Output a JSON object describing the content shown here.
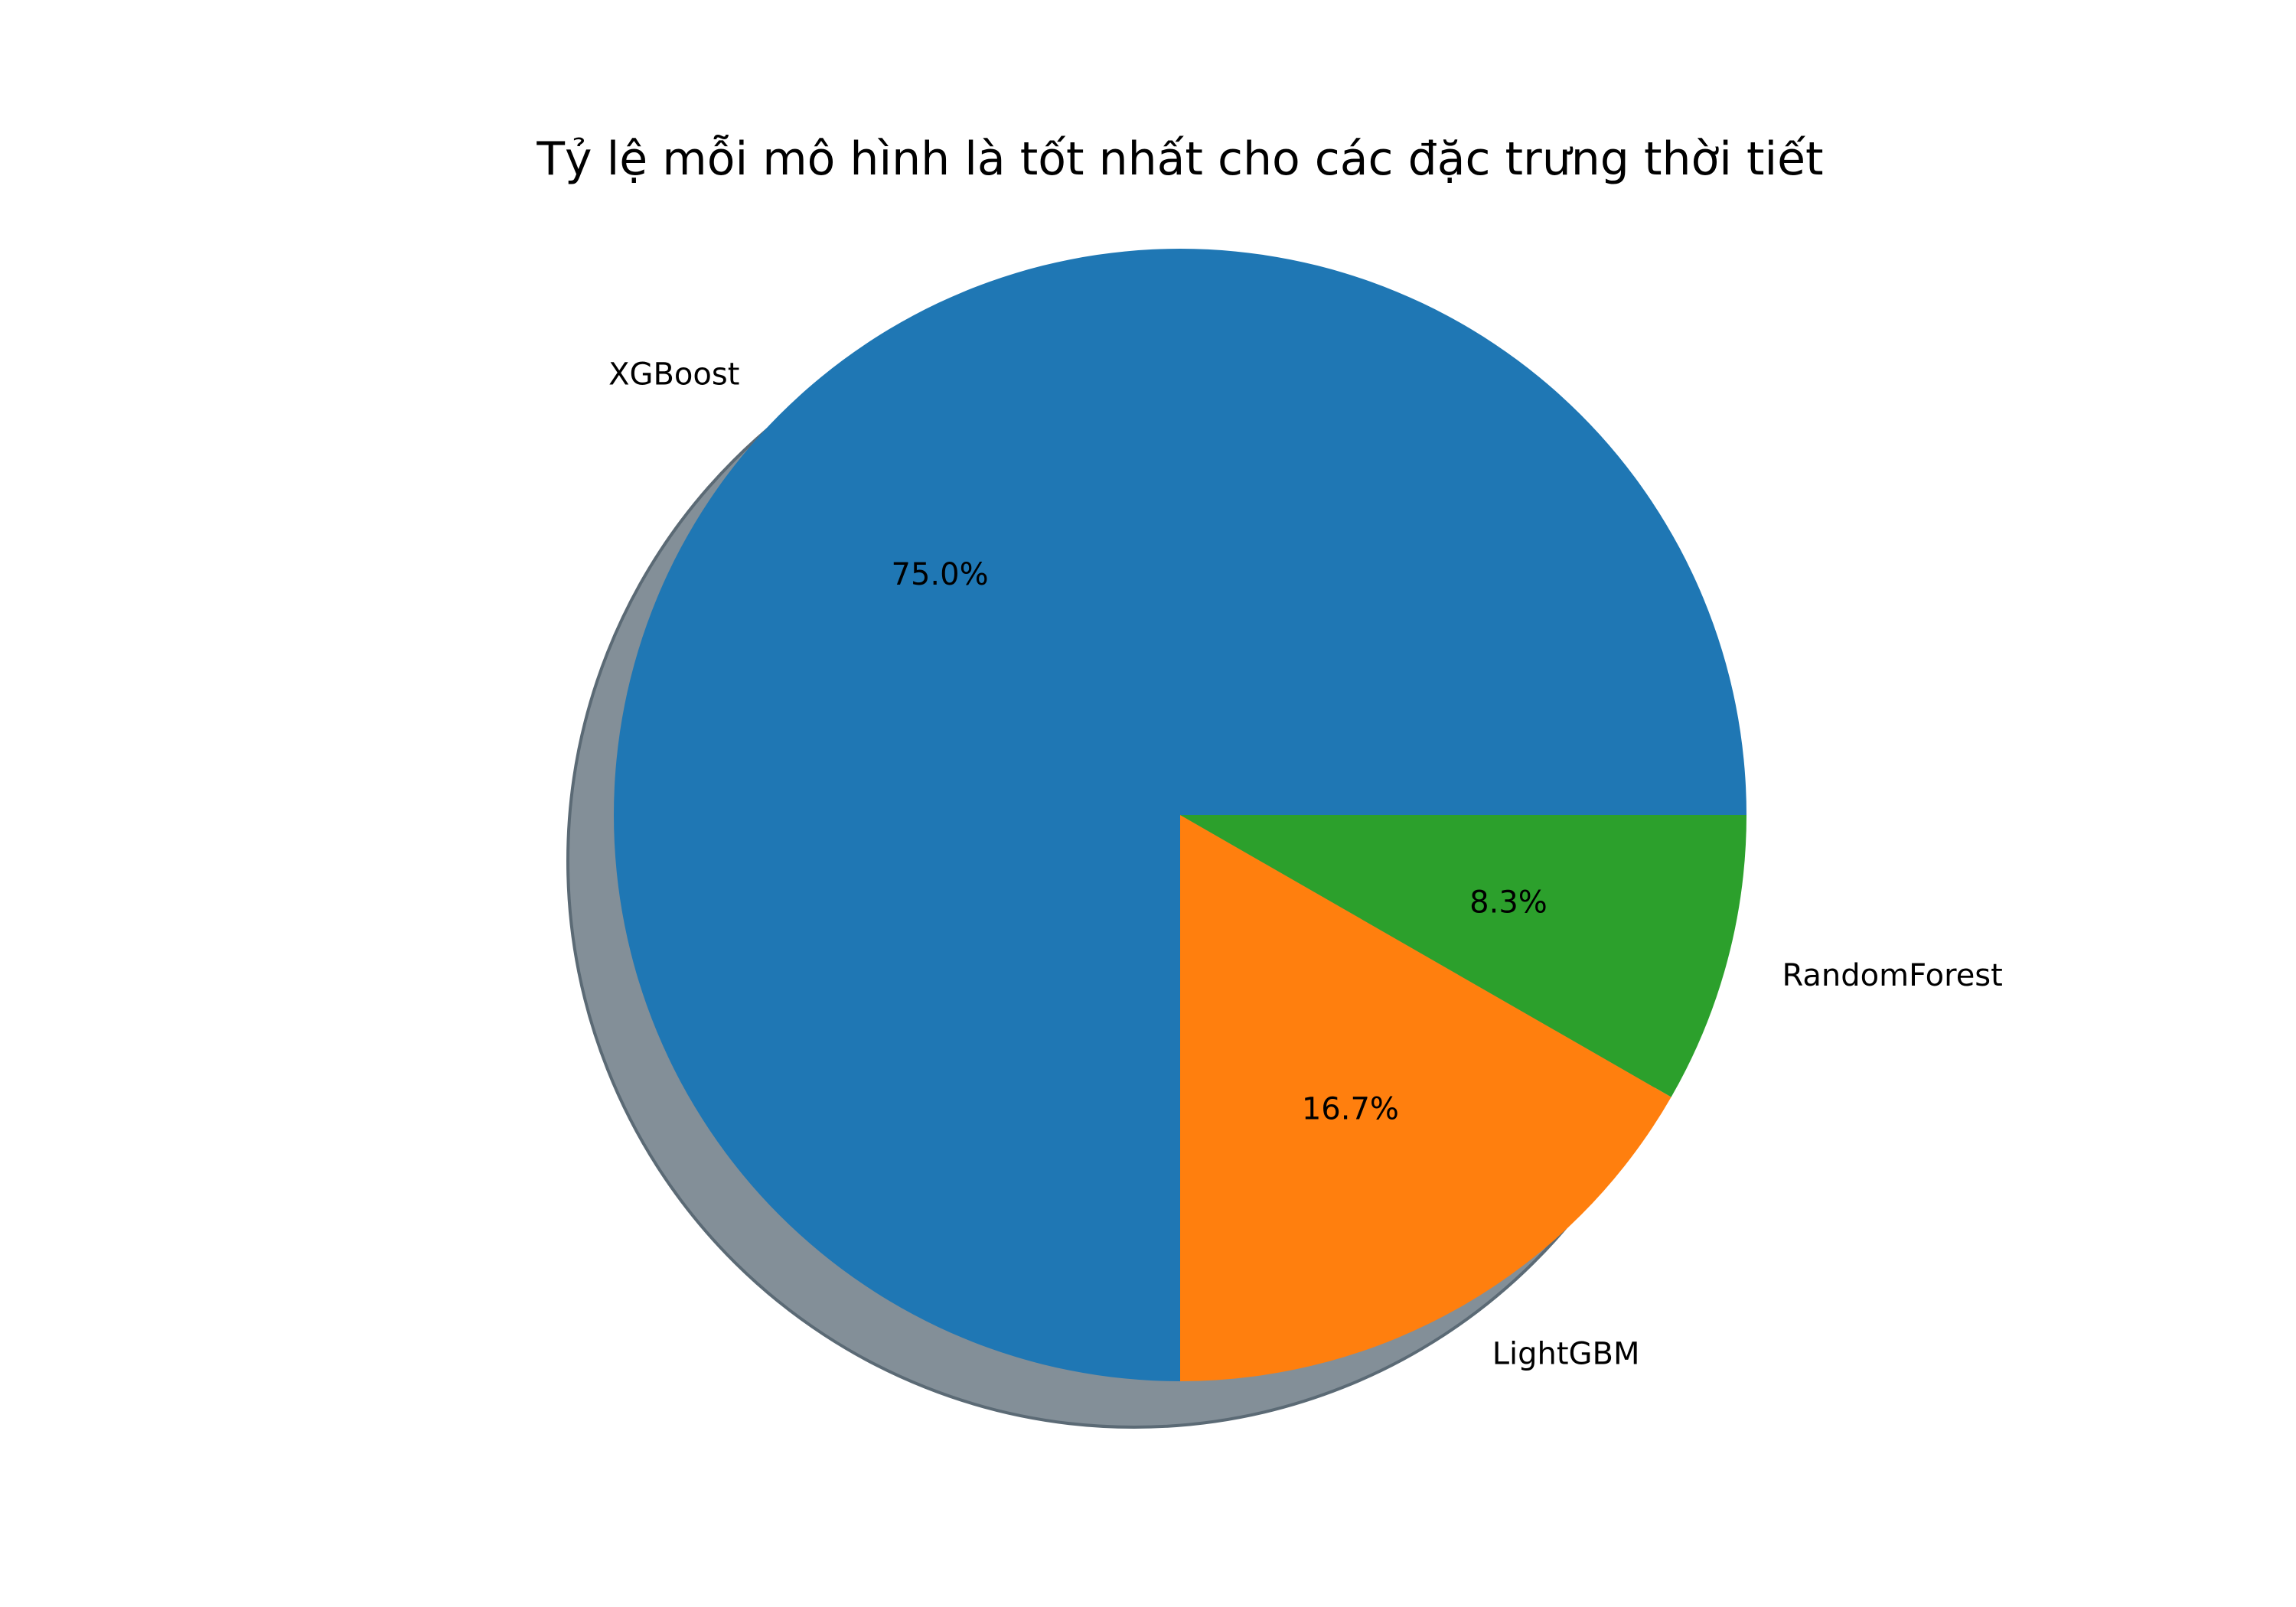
{
  "chart_data": {
    "type": "pie",
    "title": "Tỷ lệ mỗi mô hình là tốt nhất cho các đặc trưng thời tiết",
    "slices": [
      {
        "label": "XGBoost",
        "value": 75.0,
        "pct_label": "75.0%",
        "color": "#1f77b4"
      },
      {
        "label": "LightGBM",
        "value": 16.7,
        "pct_label": "16.7%",
        "color": "#ff7f0e"
      },
      {
        "label": "RandomForest",
        "value": 8.3,
        "pct_label": "8.3%",
        "color": "#2ca02c"
      }
    ],
    "start_angle": 0,
    "direction": "counterclockwise",
    "shadow": true,
    "shadow_color": "#838f98"
  }
}
